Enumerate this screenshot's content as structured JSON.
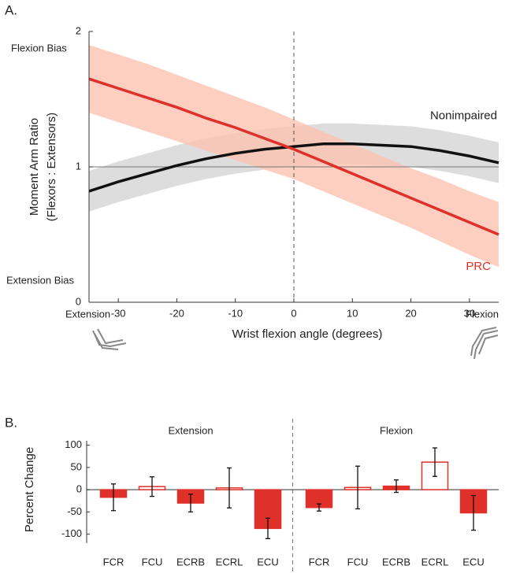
{
  "chart_data": [
    {
      "type": "line",
      "panel": "A.",
      "x": [
        -35,
        -30,
        -25,
        -20,
        -15,
        -10,
        -5,
        0,
        5,
        10,
        15,
        20,
        25,
        30,
        35
      ],
      "xlim": [
        -35,
        35
      ],
      "xticks": [
        -30,
        -20,
        -10,
        0,
        10,
        20,
        30
      ],
      "ylim": [
        0,
        2
      ],
      "yticks": [
        0,
        1,
        2
      ],
      "xlabel": "Wrist flexion angle (degrees)",
      "ylabel": [
        "Moment Arm Ratio",
        "(Flexors : Extensors)"
      ],
      "annotations": [
        "Flexion Bias",
        "Extension Bias",
        "Extension",
        "Flexion"
      ],
      "hline": 1,
      "vline": 0,
      "series": [
        {
          "name": "Nonimpaired",
          "color": "#111111",
          "band_color": "#d4d4d4",
          "values": [
            0.82,
            0.89,
            0.95,
            1.01,
            1.06,
            1.1,
            1.13,
            1.15,
            1.17,
            1.17,
            1.16,
            1.15,
            1.12,
            1.08,
            1.03
          ],
          "upper": [
            0.97,
            1.04,
            1.1,
            1.16,
            1.21,
            1.25,
            1.28,
            1.3,
            1.32,
            1.32,
            1.31,
            1.3,
            1.27,
            1.23,
            1.18
          ],
          "lower": [
            0.67,
            0.74,
            0.8,
            0.86,
            0.91,
            0.95,
            0.98,
            1.0,
            1.02,
            1.02,
            1.01,
            1.0,
            0.97,
            0.93,
            0.88
          ]
        },
        {
          "name": "PRC",
          "color": "#e0302a",
          "band_color": "#fbc3b0",
          "values": [
            1.65,
            1.58,
            1.51,
            1.44,
            1.36,
            1.29,
            1.21,
            1.13,
            1.04,
            0.95,
            0.86,
            0.77,
            0.68,
            0.59,
            0.5
          ],
          "upper": [
            1.9,
            1.83,
            1.76,
            1.68,
            1.6,
            1.52,
            1.44,
            1.35,
            1.26,
            1.17,
            1.08,
            0.99,
            0.91,
            0.82,
            0.74
          ],
          "lower": [
            1.4,
            1.33,
            1.26,
            1.19,
            1.12,
            1.05,
            0.98,
            0.91,
            0.82,
            0.73,
            0.64,
            0.55,
            0.45,
            0.35,
            0.26
          ]
        }
      ]
    },
    {
      "type": "bar",
      "panel": "B.",
      "groups": [
        "Extension",
        "Flexion"
      ],
      "categories": [
        "FCR",
        "FCU",
        "ECRB",
        "ECRL",
        "ECU",
        "FCR",
        "FCU",
        "ECRB",
        "ECRL",
        "ECU"
      ],
      "values": [
        -17,
        7,
        -30,
        4,
        -87,
        -40,
        5,
        8,
        62,
        -52
      ],
      "errors": [
        30,
        22,
        20,
        45,
        23,
        8,
        48,
        14,
        32,
        39
      ],
      "filled": [
        true,
        false,
        true,
        false,
        true,
        true,
        false,
        true,
        false,
        true
      ],
      "color": "#e0302a",
      "ylim": [
        -120,
        110
      ],
      "yticks": [
        -100,
        -50,
        0,
        50,
        100
      ],
      "ylabel": "Percent Change"
    }
  ]
}
